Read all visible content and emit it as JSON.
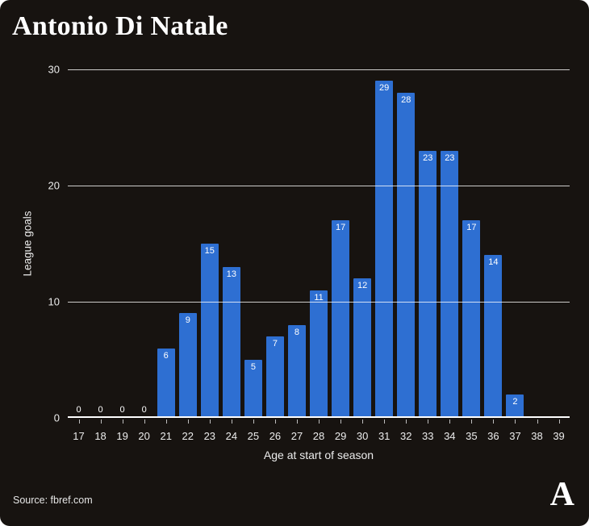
{
  "chart_data": {
    "type": "bar",
    "title": "Antonio Di Natale",
    "xlabel": "Age at start of season",
    "ylabel": "League goals",
    "categories": [
      "17",
      "18",
      "19",
      "20",
      "21",
      "22",
      "23",
      "24",
      "25",
      "26",
      "27",
      "28",
      "29",
      "30",
      "31",
      "32",
      "33",
      "34",
      "35",
      "36",
      "37",
      "38",
      "39"
    ],
    "values": [
      0,
      0,
      0,
      0,
      6,
      9,
      15,
      13,
      5,
      7,
      8,
      11,
      17,
      12,
      29,
      28,
      23,
      23,
      17,
      14,
      2,
      null,
      null
    ],
    "ylim": [
      0,
      30
    ],
    "yticks": [
      0,
      10,
      20,
      30
    ],
    "grid": "horizontal",
    "legend": "none",
    "bar_color": "#2e6fd2",
    "show_value_labels": true
  },
  "footer": {
    "source": "Source: fbref.com",
    "logo": "A"
  },
  "colors": {
    "background": "#171310",
    "text": "#f2f2f2",
    "bar": "#2e6fd2",
    "gridline": "#ffffff"
  }
}
